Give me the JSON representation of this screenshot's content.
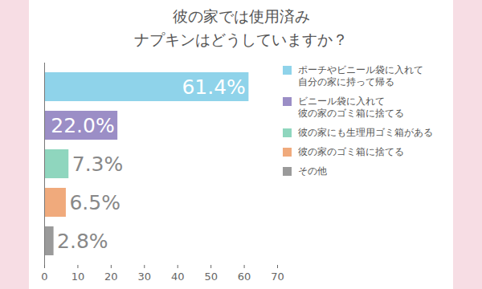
{
  "chart_data": {
    "type": "bar",
    "orientation": "horizontal",
    "title": "彼の家では使用済み\nナプキンはどうしていますか？",
    "categories": [
      "ポーチやビニール袋に入れて\n自分の家に持って帰る",
      "ビニール袋に入れて\n彼の家のゴミ箱に捨てる",
      "彼の家にも生理用ゴミ箱がある",
      "彼の家のゴミ箱に捨てる",
      "その他"
    ],
    "values": [
      61.4,
      22.0,
      7.3,
      6.5,
      2.8
    ],
    "value_labels": [
      "61.4%",
      "22.0%",
      "7.3%",
      "6.5%",
      "2.8%"
    ],
    "colors": [
      "#8fd3ea",
      "#9b8ec6",
      "#8fd6be",
      "#f0aa7c",
      "#9a9a9a"
    ],
    "xlim": [
      0,
      70
    ],
    "xticks": [
      0,
      10,
      20,
      30,
      40,
      50,
      60,
      70
    ],
    "grid": false,
    "data_labels": true,
    "legend": "right",
    "tick_labels": "x"
  }
}
